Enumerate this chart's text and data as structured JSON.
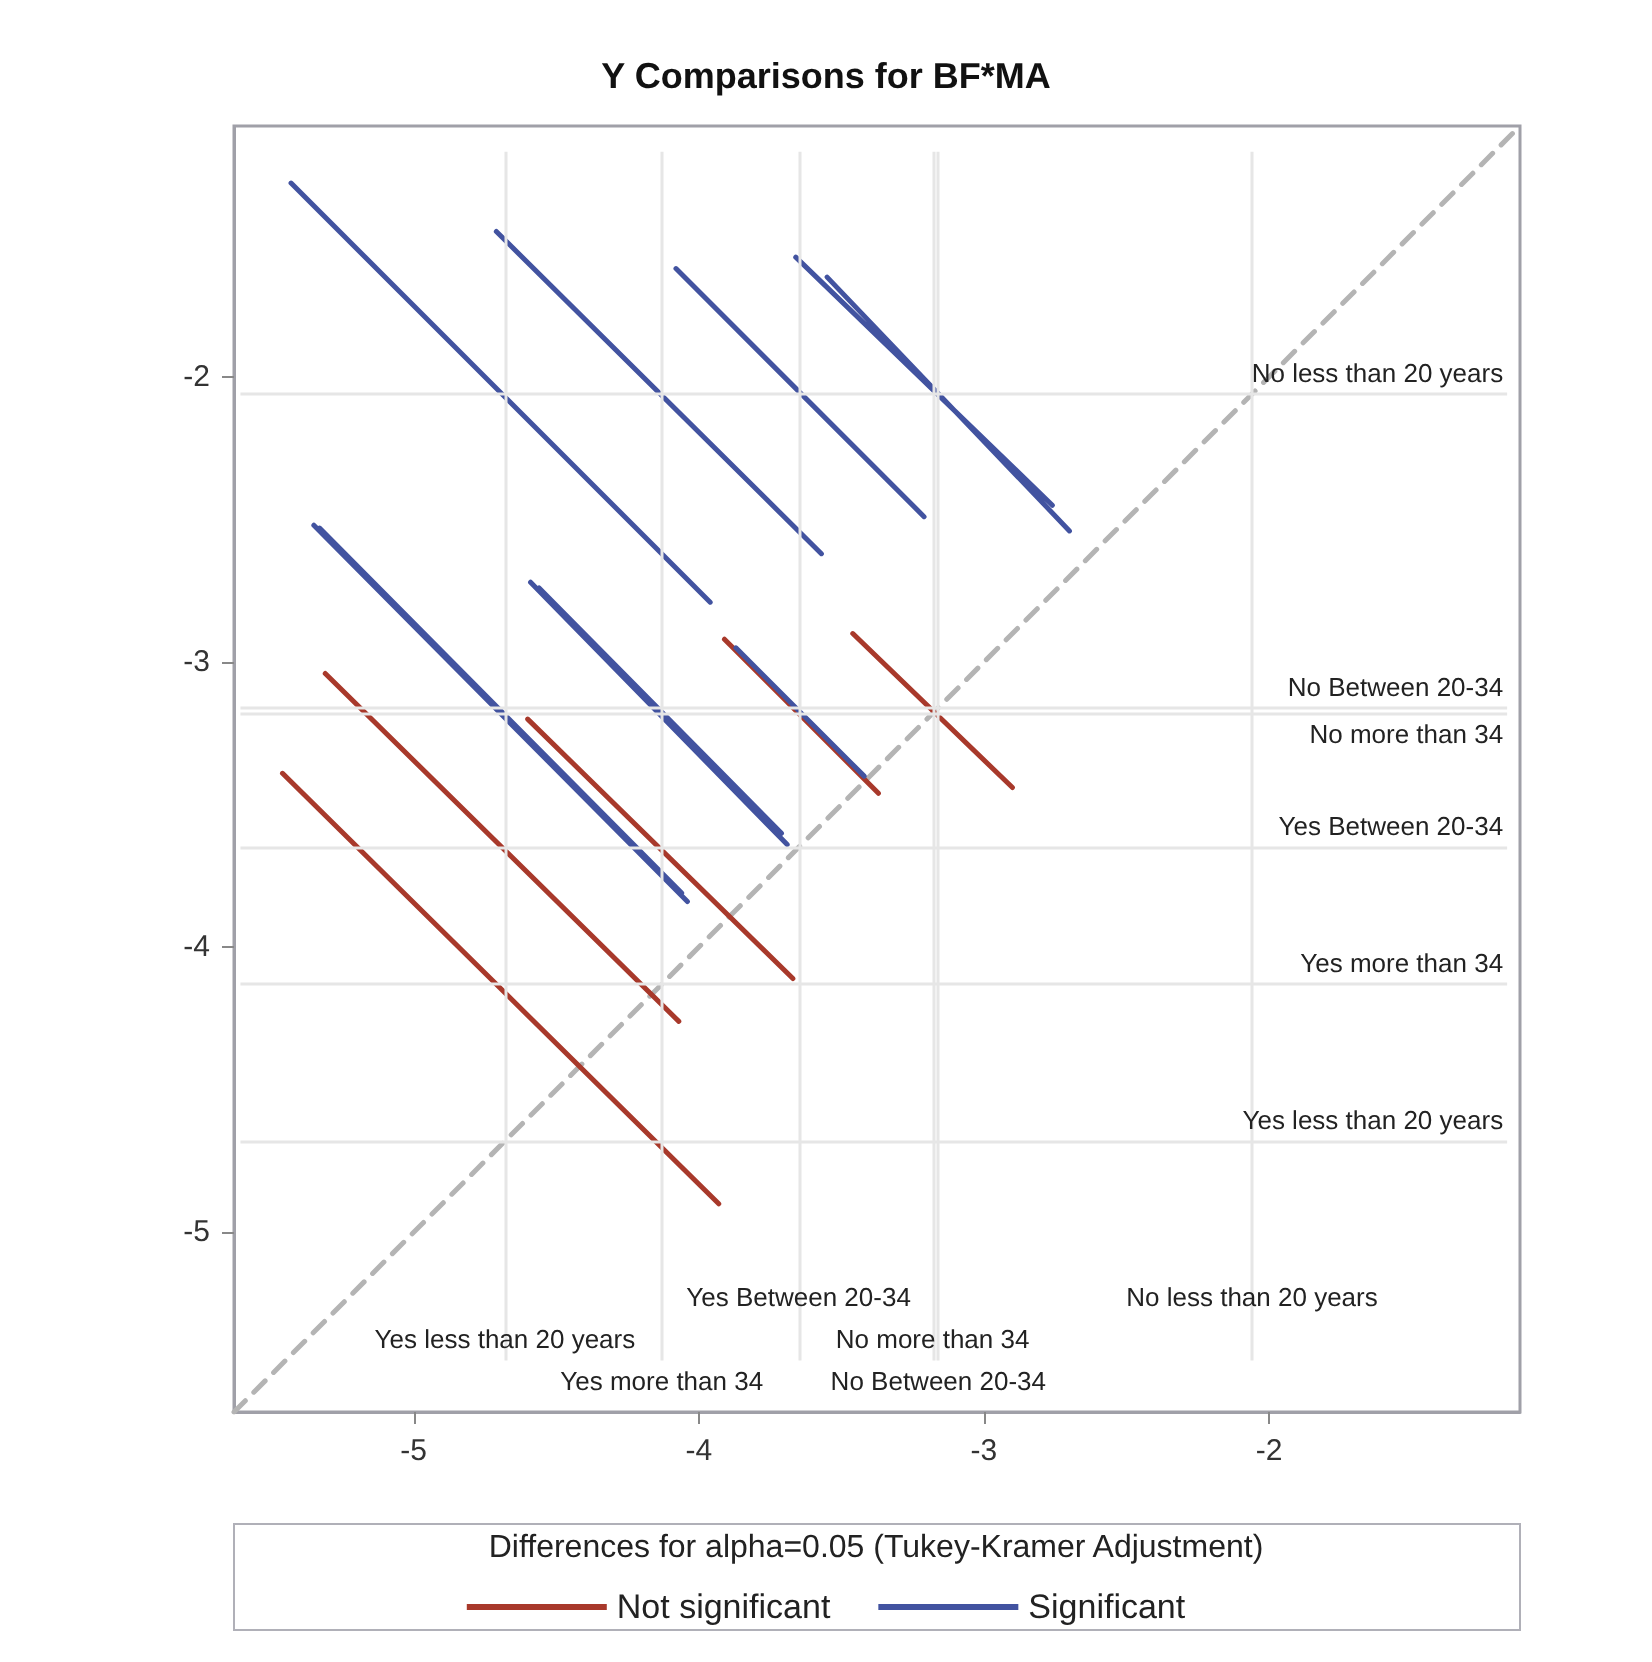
{
  "chart_data": {
    "type": "line",
    "title": "Y Comparisons for BF*MA",
    "legend_title": "Differences for alpha=0.05 (Tukey-Kramer Adjustment)",
    "legend": "bottom",
    "grid": false,
    "marker": "none",
    "xlim": [
      -5.63,
      -1.12
    ],
    "ylim": [
      -5.63,
      -1.12
    ],
    "xticks": [
      -5,
      -4,
      -3,
      -2
    ],
    "yticks": [
      -5,
      -4,
      -3,
      -2
    ],
    "series": [
      {
        "name": "Not significant",
        "color": "#a8392b",
        "x": [
          -3.91,
          -3.37,
          null,
          -3.46,
          -2.9,
          null,
          -5.31,
          -4.07,
          null,
          -4.6,
          -3.67,
          null,
          -5.46,
          -3.93
        ],
        "values": [
          -2.92,
          -3.46,
          null,
          -2.9,
          -3.44,
          null,
          -3.04,
          -4.26,
          null,
          -3.2,
          -4.11,
          null,
          -3.39,
          -4.9
        ]
      },
      {
        "name": "Significant",
        "color": "#4253a0",
        "x": [
          -5.43,
          -3.96,
          null,
          -4.71,
          -3.57,
          null,
          -4.08,
          -3.21,
          null,
          -3.66,
          -2.76,
          null,
          -3.55,
          -2.7,
          null,
          -5.35,
          -4.04,
          null,
          -5.33,
          -4.06,
          null,
          -4.59,
          -3.69,
          null,
          -4.56,
          -3.71,
          null,
          -3.87,
          -3.42
        ],
        "values": [
          -1.32,
          -2.79,
          null,
          -1.49,
          -2.62,
          null,
          -1.62,
          -2.49,
          null,
          -1.58,
          -2.45,
          null,
          -1.65,
          -2.54,
          null,
          -2.52,
          -3.84,
          null,
          -2.53,
          -3.81,
          null,
          -2.72,
          -3.64,
          null,
          -2.74,
          -3.6,
          null,
          -2.95,
          -3.4
        ]
      },
      {
        "color": "#b4b4b4",
        "line_style": "dashed",
        "x": [
          -5.63,
          -1.12
        ],
        "values": [
          -5.63,
          -1.12
        ]
      }
    ],
    "ref_lines": [
      {
        "axis": "y",
        "value": -2.06,
        "label": "No less than 20 years",
        "color": "#e6e6e6"
      },
      {
        "axis": "y",
        "value": -3.16,
        "label": "No Between 20-34",
        "color": "#e6e6e6"
      },
      {
        "axis": "y",
        "value": -3.18,
        "label": "No more than 34",
        "color": "#e6e6e6"
      },
      {
        "axis": "y",
        "value": -3.65,
        "label": "Yes Between 20-34",
        "color": "#e6e6e6"
      },
      {
        "axis": "y",
        "value": -4.13,
        "label": "Yes more than 34",
        "color": "#e6e6e6"
      },
      {
        "axis": "y",
        "value": -4.68,
        "label": "Yes less than 20 years",
        "color": "#e6e6e6"
      },
      {
        "axis": "x",
        "value": -4.68,
        "label": "Yes less than 20 years",
        "color": "#e6e6e6"
      },
      {
        "axis": "x",
        "value": -4.13,
        "label": "Yes more than 34",
        "color": "#e6e6e6"
      },
      {
        "axis": "x",
        "value": -3.65,
        "label": "Yes Between 20-34",
        "color": "#e6e6e6"
      },
      {
        "axis": "x",
        "value": -3.18,
        "label": "No more than 34",
        "color": "#e6e6e6"
      },
      {
        "axis": "x",
        "value": -3.16,
        "label": "No Between 20-34",
        "color": "#e6e6e6"
      },
      {
        "axis": "x",
        "value": -2.06,
        "label": "No less than 20 years",
        "color": "#e6e6e6"
      }
    ]
  }
}
